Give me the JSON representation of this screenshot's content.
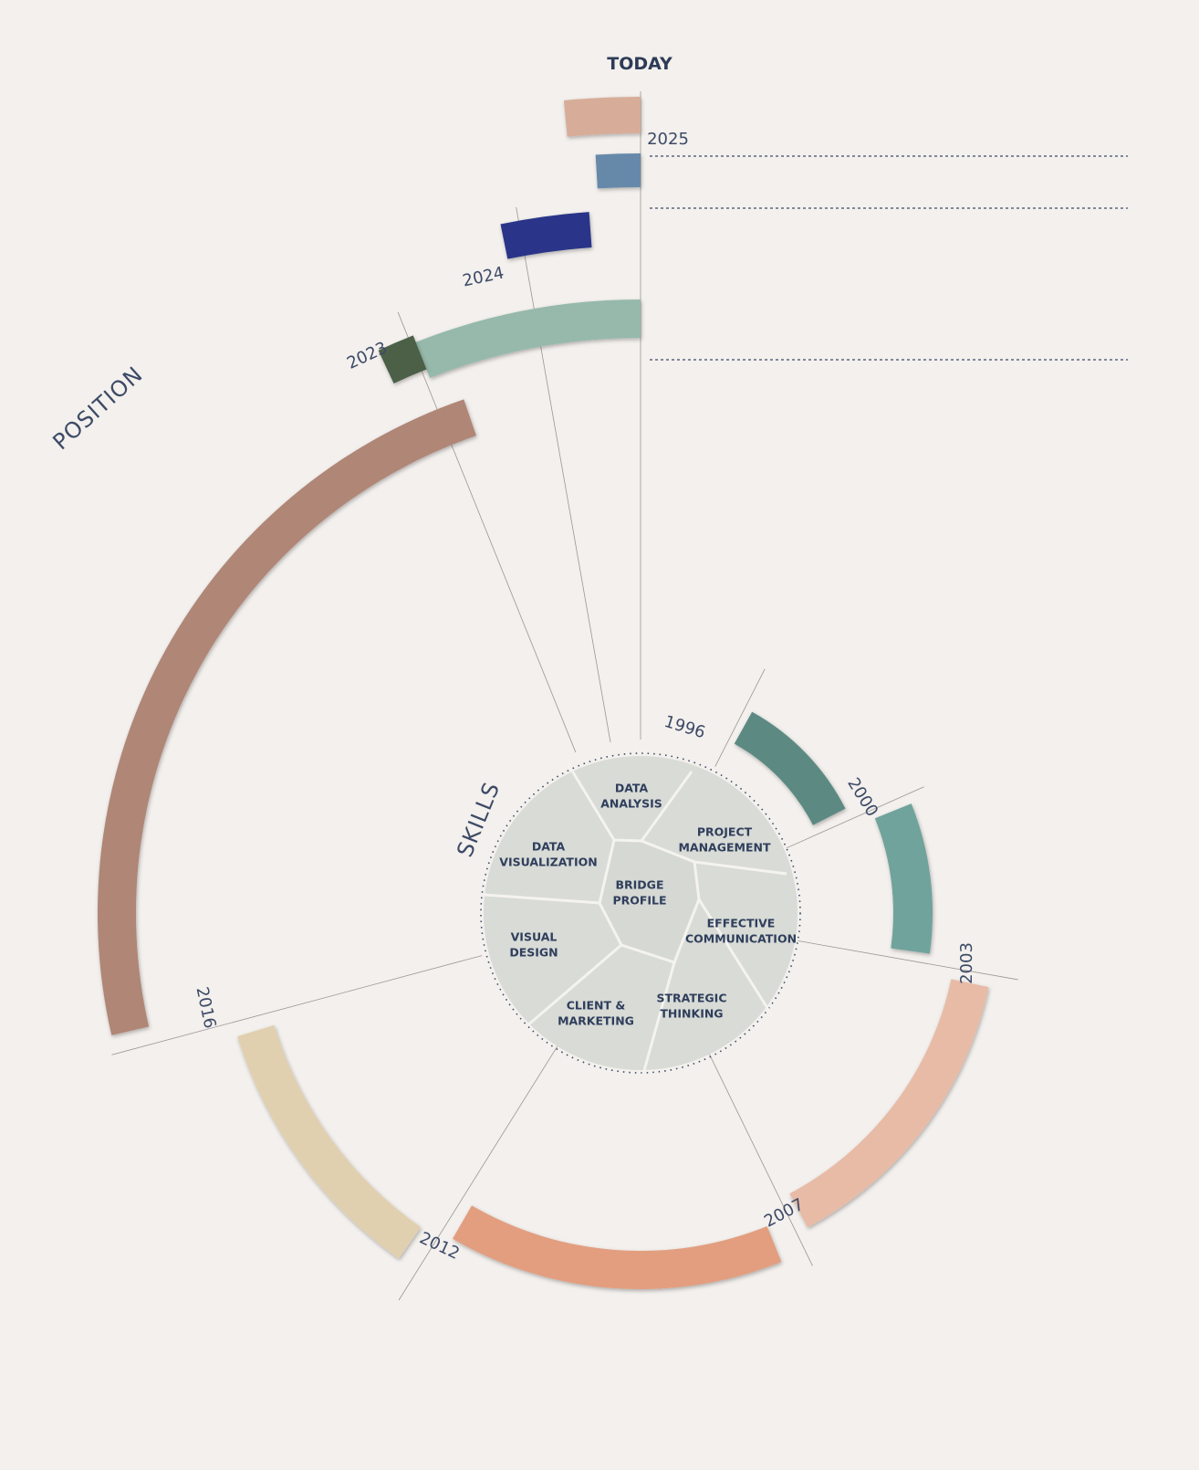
{
  "title": "TODAY",
  "section_labels": {
    "position": "POSITION",
    "skills": "SKILLS"
  },
  "center_label": "BRIDGE\nPROFILE",
  "skills": [
    {
      "label": "DATA\nANALYSIS"
    },
    {
      "label": "PROJECT\nMANAGEMENT"
    },
    {
      "label": "EFFECTIVE\nCOMMUNICATION"
    },
    {
      "label": "STRATEGIC\nTHINKING"
    },
    {
      "label": "CLIENT &\nMARKETING"
    },
    {
      "label": "VISUAL\nDESIGN"
    },
    {
      "label": "DATA\nVISUALIZATION"
    }
  ],
  "timeline": [
    {
      "year": "1996",
      "color": "#5b8a82"
    },
    {
      "year": "2000",
      "color": "#6fa39b"
    },
    {
      "year": "2003",
      "color": "#e8bba7"
    },
    {
      "year": "2007",
      "color": "#e29e7f"
    },
    {
      "year": "2012",
      "color": "#e0d0b0"
    },
    {
      "year": "2016",
      "color": "#b08677"
    },
    {
      "year": "2023",
      "color": "#96b9ab"
    },
    {
      "year": "2024",
      "color": "#293589"
    },
    {
      "year": "2025",
      "color": "#d7ad99"
    }
  ],
  "extra_segments": [
    {
      "color": "#4c6147"
    },
    {
      "color": "#6689aa"
    }
  ],
  "colors": {
    "background": "#f3f0ed",
    "skills_disc": "#d8dbd6",
    "text": "#2d3b57"
  }
}
